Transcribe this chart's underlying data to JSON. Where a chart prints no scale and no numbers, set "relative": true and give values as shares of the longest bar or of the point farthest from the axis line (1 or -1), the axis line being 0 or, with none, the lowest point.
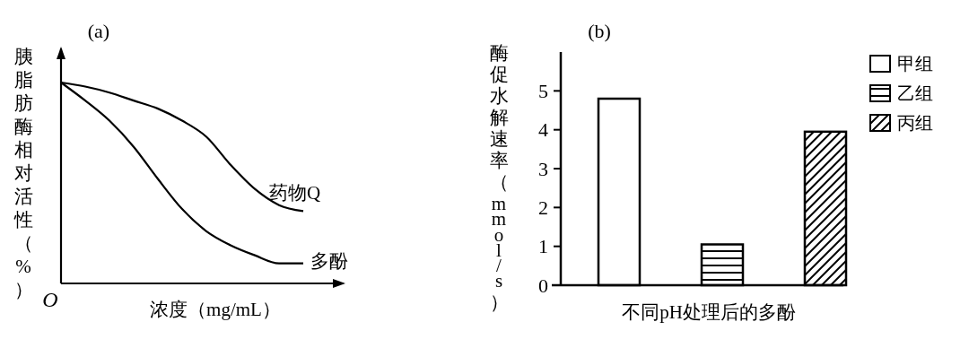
{
  "chart_data": [
    {
      "type": "line",
      "title": "(a)",
      "xlabel": "浓度（mg/mL）",
      "ylabel": "胰脂肪酶相对活性（%）",
      "relative": true,
      "categories": [
        null,
        null,
        null,
        null,
        null,
        null,
        null,
        null,
        null,
        null,
        null
      ],
      "annotations": [
        "O"
      ],
      "marker": "none",
      "line_style": "solid",
      "legend": false,
      "series": [
        {
          "name": "药物Q",
          "color": "#000000",
          "values": [
            1.0,
            0.98,
            0.95,
            0.91,
            0.87,
            0.81,
            0.73,
            0.59,
            0.47,
            0.39,
            0.36
          ]
        },
        {
          "name": "多酚",
          "color": "#000000",
          "values": [
            1.0,
            0.91,
            0.81,
            0.68,
            0.52,
            0.37,
            0.26,
            0.19,
            0.14,
            0.1,
            0.1
          ]
        }
      ]
    },
    {
      "type": "bar",
      "title": "(b)",
      "xlabel": "不同pH处理后的多酚",
      "ylabel": "酶促水解速率（mmol/s）",
      "categories": [
        null,
        null,
        null
      ],
      "ylim": [
        0,
        6
      ],
      "yticks": [
        0,
        1,
        2,
        3,
        4,
        5
      ],
      "legend": "top right",
      "grid": false,
      "series": [
        {
          "name": "甲组",
          "color": "#ffffff",
          "values": [
            4.8,
            null,
            null
          ]
        },
        {
          "name": "乙组",
          "color": "#ffffff",
          "values": [
            null,
            1.05,
            null
          ]
        },
        {
          "name": "丙组",
          "color": "#ffffff",
          "values": [
            null,
            null,
            3.95
          ]
        }
      ]
    }
  ]
}
